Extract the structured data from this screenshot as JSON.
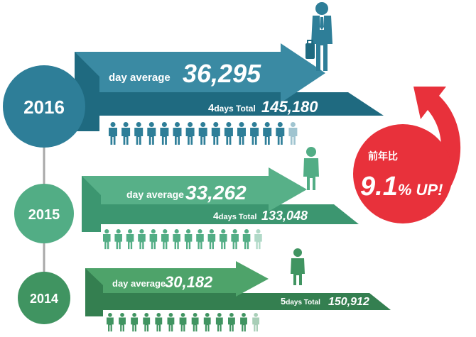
{
  "chart_data": {
    "type": "bar",
    "title": "",
    "categories": [
      "2016",
      "2015",
      "2014"
    ],
    "rows": [
      {
        "year": "2016",
        "avg_label": "day average",
        "avg_value": "36,295",
        "total_days": "4",
        "total_label": "days Total",
        "total_value": "145,180",
        "color": "#3a8aa3",
        "color_dark": "#1f6a80",
        "color_circle": "#2e7e98",
        "people_icons": 14.5
      },
      {
        "year": "2015",
        "avg_label": "day average",
        "avg_value": "33,262",
        "total_days": "4",
        "total_label": "days Total",
        "total_value": "133,048",
        "color": "#57b088",
        "color_dark": "#3c9670",
        "color_circle": "#52ad85",
        "people_icons": 13.3
      },
      {
        "year": "2014",
        "avg_label": "day average",
        "avg_value": "30,182",
        "total_days": "5",
        "total_label": "days Total",
        "total_value": "150,912",
        "color": "#4ea36a",
        "color_dark": "#347f50",
        "color_circle": "#409461",
        "people_icons": 12.1
      }
    ],
    "growth": {
      "prefix": "前年比",
      "value": "9.1",
      "suffix": "% UP!",
      "color": "#e8313b"
    }
  }
}
